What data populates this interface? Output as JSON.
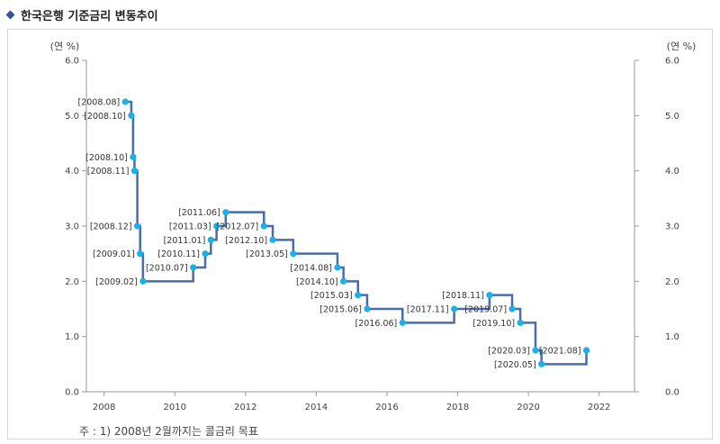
{
  "header": {
    "title": "한국은행 기준금리 변동추이"
  },
  "footnote": "주 : 1) 2008년 2월까지는 콜금리 목표",
  "colors": {
    "line": "#4a6ca8",
    "point": "#1ab0e8",
    "grid": "#d9d9d9",
    "accent": "#2f5597"
  },
  "chart_data": {
    "type": "line",
    "step": true,
    "ylabel_left": "(연 %)",
    "ylabel_right": "(연 %)",
    "ylim": [
      0,
      6
    ],
    "yticks": [
      "0.0",
      "1.0",
      "2.0",
      "3.0",
      "4.0",
      "5.0",
      "6.0"
    ],
    "xlim": [
      2007.5,
      2023.0
    ],
    "xticks": [
      "2008",
      "2010",
      "2012",
      "2014",
      "2016",
      "2018",
      "2020",
      "2022"
    ],
    "grid": false,
    "series": [
      {
        "points": [
          {
            "label": "[2008.08]",
            "x": 2008.6,
            "y": 5.25,
            "side": "left"
          },
          {
            "label": "[2008.10]",
            "x": 2008.77,
            "y": 5.0,
            "side": "left"
          },
          {
            "label": "[2008.10]",
            "x": 2008.82,
            "y": 4.25,
            "side": "left"
          },
          {
            "label": "[2008.11]",
            "x": 2008.86,
            "y": 4.0,
            "side": "left"
          },
          {
            "label": "[2008.12]",
            "x": 2008.94,
            "y": 3.0,
            "side": "left"
          },
          {
            "label": "[2009.01]",
            "x": 2009.02,
            "y": 2.5,
            "side": "left"
          },
          {
            "label": "[2009.02]",
            "x": 2009.1,
            "y": 2.0,
            "side": "left"
          },
          {
            "label": "[2010.07]",
            "x": 2010.52,
            "y": 2.25,
            "side": "left"
          },
          {
            "label": "[2010.11]",
            "x": 2010.86,
            "y": 2.5,
            "side": "left"
          },
          {
            "label": "[2011.01]",
            "x": 2011.02,
            "y": 2.75,
            "side": "left"
          },
          {
            "label": "[2011.03]",
            "x": 2011.18,
            "y": 3.0,
            "side": "left"
          },
          {
            "label": "[2011.06]",
            "x": 2011.44,
            "y": 3.25,
            "side": "left"
          },
          {
            "label": "[2012.07]",
            "x": 2012.52,
            "y": 3.0,
            "side": "left"
          },
          {
            "label": "[2012.10]",
            "x": 2012.77,
            "y": 2.75,
            "side": "left"
          },
          {
            "label": "[2013.05]",
            "x": 2013.35,
            "y": 2.5,
            "side": "left"
          },
          {
            "label": "[2014.08]",
            "x": 2014.6,
            "y": 2.25,
            "side": "left"
          },
          {
            "label": "[2014.10]",
            "x": 2014.77,
            "y": 2.0,
            "side": "left"
          },
          {
            "label": "[2015.03]",
            "x": 2015.18,
            "y": 1.75,
            "side": "left"
          },
          {
            "label": "[2015.06]",
            "x": 2015.44,
            "y": 1.5,
            "side": "left"
          },
          {
            "label": "[2016.06]",
            "x": 2016.44,
            "y": 1.25,
            "side": "left"
          },
          {
            "label": "[2017.11]",
            "x": 2017.9,
            "y": 1.5,
            "side": "left"
          },
          {
            "label": "[2018.11]",
            "x": 2018.9,
            "y": 1.75,
            "side": "left"
          },
          {
            "label": "[2019.07]",
            "x": 2019.54,
            "y": 1.5,
            "side": "left"
          },
          {
            "label": "[2019.10]",
            "x": 2019.77,
            "y": 1.25,
            "side": "left"
          },
          {
            "label": "[2020.03]",
            "x": 2020.2,
            "y": 0.75,
            "side": "left"
          },
          {
            "label": "[2020.05]",
            "x": 2020.37,
            "y": 0.5,
            "side": "left"
          },
          {
            "label": "[2021.08]",
            "x": 2021.64,
            "y": 0.75,
            "side": "left"
          }
        ]
      }
    ]
  }
}
